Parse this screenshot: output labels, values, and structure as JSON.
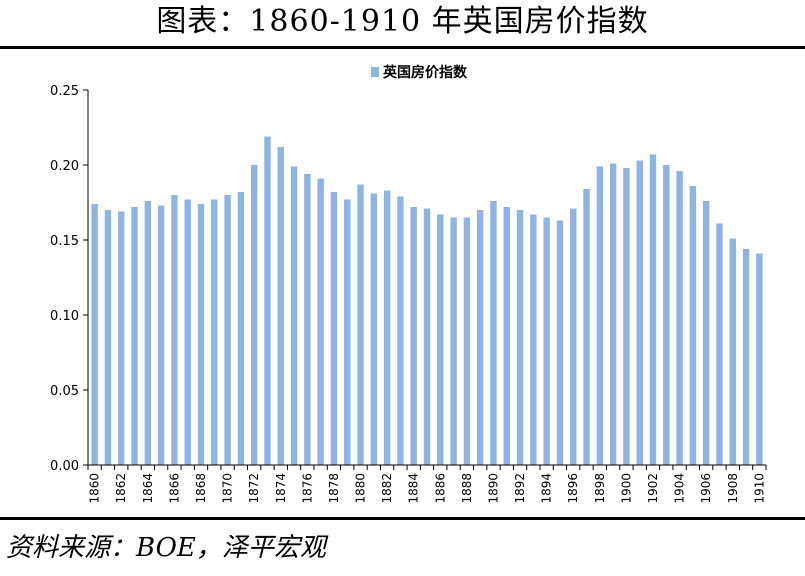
{
  "header": {
    "title": "图表：1860-1910 年英国房价指数"
  },
  "footer": {
    "source": "资料来源：BOE，泽平宏观"
  },
  "chart_data": {
    "type": "bar",
    "title": "",
    "xlabel": "",
    "ylabel": "",
    "ylim": [
      0,
      0.25
    ],
    "yticks": [
      "0.00",
      "0.05",
      "0.10",
      "0.15",
      "0.20",
      "0.25"
    ],
    "grid": false,
    "legend": "top-center",
    "bar_color": "#8fb4e3",
    "categories": [
      1860,
      1861,
      1862,
      1863,
      1864,
      1865,
      1866,
      1867,
      1868,
      1869,
      1870,
      1871,
      1872,
      1873,
      1874,
      1875,
      1876,
      1877,
      1878,
      1879,
      1880,
      1881,
      1882,
      1883,
      1884,
      1885,
      1886,
      1887,
      1888,
      1889,
      1890,
      1891,
      1892,
      1893,
      1894,
      1895,
      1896,
      1897,
      1898,
      1899,
      1900,
      1901,
      1902,
      1903,
      1904,
      1905,
      1906,
      1907,
      1908,
      1909,
      1910
    ],
    "tick_labels": [
      "1860",
      "1862",
      "1864",
      "1866",
      "1868",
      "1870",
      "1872",
      "1874",
      "1876",
      "1878",
      "1880",
      "1882",
      "1884",
      "1886",
      "1888",
      "1890",
      "1892",
      "1894",
      "1896",
      "1898",
      "1900",
      "1902",
      "1904",
      "1906",
      "1908",
      "1910"
    ],
    "series": [
      {
        "name": "英国房价指数",
        "values": [
          0.174,
          0.17,
          0.169,
          0.172,
          0.176,
          0.173,
          0.18,
          0.177,
          0.174,
          0.177,
          0.18,
          0.182,
          0.2,
          0.219,
          0.212,
          0.199,
          0.194,
          0.191,
          0.182,
          0.177,
          0.187,
          0.181,
          0.183,
          0.179,
          0.172,
          0.171,
          0.167,
          0.165,
          0.165,
          0.17,
          0.176,
          0.172,
          0.17,
          0.167,
          0.165,
          0.163,
          0.171,
          0.184,
          0.199,
          0.201,
          0.198,
          0.203,
          0.207,
          0.2,
          0.196,
          0.186,
          0.176,
          0.161,
          0.151,
          0.144,
          0.141
        ]
      }
    ]
  }
}
